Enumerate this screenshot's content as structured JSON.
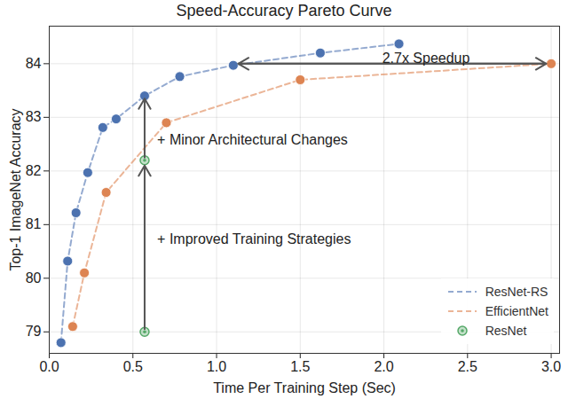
{
  "chart_data": {
    "type": "line",
    "title": "Speed-Accuracy Pareto Curve",
    "x_label": "Time Per Training Step (Sec)",
    "y_label": "Top-1 ImageNet Accuracy",
    "xlim": [
      0,
      3.05
    ],
    "ylim": [
      78.6,
      84.7
    ],
    "xticks": [
      {
        "value": 0,
        "label": "0.0"
      },
      {
        "value": 0.5,
        "label": "0.5"
      },
      {
        "value": 1,
        "label": "1.0"
      },
      {
        "value": 1.5,
        "label": "1.5"
      },
      {
        "value": 2,
        "label": "2.0"
      },
      {
        "value": 2.5,
        "label": "2.5"
      },
      {
        "value": 3,
        "label": "3.0"
      }
    ],
    "yticks": [
      79,
      80,
      81,
      82,
      83,
      84
    ],
    "grid": true,
    "legend": "lower right",
    "series": [
      {
        "name": "ResNet-RS",
        "color": "#4c72b0",
        "type": "line",
        "line_style": "dashed",
        "marker": "o",
        "x": [
          0.07,
          0.11,
          0.16,
          0.23,
          0.32,
          0.4,
          0.57,
          0.78,
          1.1,
          1.62,
          2.09
        ],
        "values": [
          78.8,
          80.32,
          81.22,
          81.97,
          82.81,
          82.97,
          83.4,
          83.76,
          83.97,
          84.2,
          84.37
        ]
      },
      {
        "name": "EfficientNet",
        "color": "#dd8452",
        "type": "line",
        "line_style": "dashed",
        "marker": "o",
        "x": [
          0.14,
          0.21,
          0.34,
          0.7,
          1.5,
          3.0
        ],
        "values": [
          79.1,
          80.1,
          81.6,
          82.9,
          83.7,
          84.0
        ]
      },
      {
        "name": "ResNet",
        "color": "#55a868",
        "type": "scatter",
        "marker": "o",
        "x": [
          0.57,
          0.57
        ],
        "values": [
          79.0,
          82.2
        ]
      }
    ],
    "annotations": [
      {
        "text": "2.7x Speedup",
        "x": 1.99,
        "y": 84.1,
        "marker": "double-arrow",
        "from": [
          1.13,
          84.0
        ],
        "to": [
          2.97,
          84.0
        ]
      },
      {
        "text": "+ Minor Architectural Changes",
        "x": 0.645,
        "y": 82.57,
        "marker": "arrow",
        "from": [
          0.57,
          82.25
        ],
        "to": [
          0.57,
          83.35
        ]
      },
      {
        "text": "+ Improved Training Strategies",
        "x": 0.645,
        "y": 80.73,
        "marker": "arrow",
        "from": [
          0.57,
          79.05
        ],
        "to": [
          0.57,
          82.1
        ]
      }
    ]
  }
}
